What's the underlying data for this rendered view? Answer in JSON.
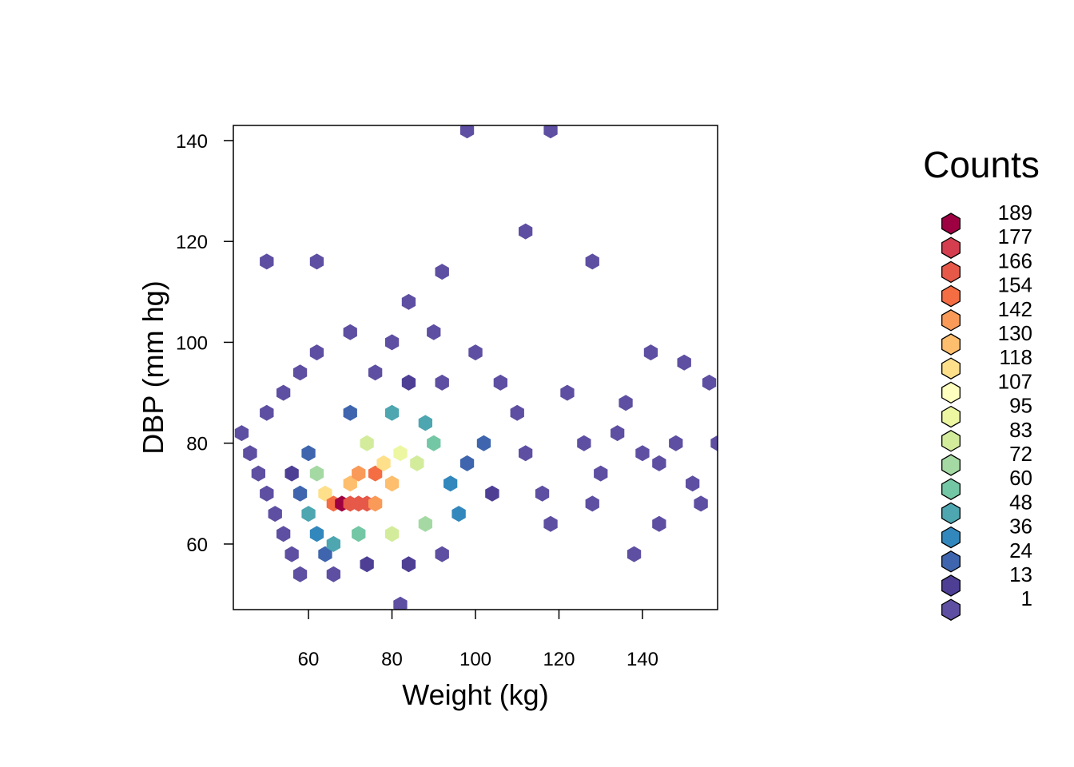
{
  "chart_data": {
    "type": "heatmap",
    "subtype": "hexbin",
    "xlabel": "Weight (kg)",
    "ylabel": "DBP (mm hg)",
    "xlim": [
      42,
      158
    ],
    "ylim": [
      47,
      143
    ],
    "xticks": [
      60,
      80,
      100,
      120,
      140
    ],
    "yticks": [
      60,
      80,
      100,
      120,
      140
    ],
    "xtick_labels": [
      "60",
      "80",
      "100",
      "120",
      "140"
    ],
    "ytick_labels": [
      "60",
      "80",
      "100",
      "120",
      "140"
    ],
    "grid": false,
    "legend": {
      "title": "Counts",
      "placement": "right",
      "labels": [
        "189",
        "177",
        "166",
        "154",
        "142",
        "130",
        "118",
        "107",
        "95",
        "83",
        "72",
        "60",
        "48",
        "36",
        "24",
        "13",
        "1"
      ],
      "colors": [
        "#9E0142",
        "#D53E4F",
        "#E65848",
        "#F46D43",
        "#FA9A58",
        "#FDBE6E",
        "#FEE08B",
        "#FFFFBF",
        "#EDF7A2",
        "#D3EC9C",
        "#A4D9A4",
        "#74C7A4",
        "#4DA6B0",
        "#3288BD",
        "#3E65AE",
        "#4E3F95",
        "#5E4FA2"
      ]
    },
    "bins": [
      {
        "x": 44,
        "y": 82,
        "count": 1
      },
      {
        "x": 46,
        "y": 78,
        "count": 3
      },
      {
        "x": 48,
        "y": 74,
        "count": 5
      },
      {
        "x": 50,
        "y": 70,
        "count": 6
      },
      {
        "x": 52,
        "y": 66,
        "count": 8
      },
      {
        "x": 54,
        "y": 62,
        "count": 6
      },
      {
        "x": 56,
        "y": 58,
        "count": 5
      },
      {
        "x": 58,
        "y": 54,
        "count": 3
      },
      {
        "x": 50,
        "y": 86,
        "count": 2
      },
      {
        "x": 54,
        "y": 90,
        "count": 3
      },
      {
        "x": 58,
        "y": 94,
        "count": 2
      },
      {
        "x": 62,
        "y": 98,
        "count": 2
      },
      {
        "x": 56,
        "y": 74,
        "count": 18
      },
      {
        "x": 58,
        "y": 70,
        "count": 34
      },
      {
        "x": 60,
        "y": 66,
        "count": 52
      },
      {
        "x": 62,
        "y": 62,
        "count": 44
      },
      {
        "x": 64,
        "y": 58,
        "count": 26
      },
      {
        "x": 66,
        "y": 54,
        "count": 12
      },
      {
        "x": 60,
        "y": 78,
        "count": 28
      },
      {
        "x": 62,
        "y": 74,
        "count": 74
      },
      {
        "x": 64,
        "y": 70,
        "count": 118
      },
      {
        "x": 66,
        "y": 68,
        "count": 160
      },
      {
        "x": 68,
        "y": 68,
        "count": 189
      },
      {
        "x": 70,
        "y": 68,
        "count": 176
      },
      {
        "x": 72,
        "y": 68,
        "count": 172
      },
      {
        "x": 74,
        "y": 68,
        "count": 170
      },
      {
        "x": 76,
        "y": 68,
        "count": 150
      },
      {
        "x": 70,
        "y": 72,
        "count": 140
      },
      {
        "x": 72,
        "y": 74,
        "count": 148
      },
      {
        "x": 76,
        "y": 74,
        "count": 160
      },
      {
        "x": 80,
        "y": 72,
        "count": 136
      },
      {
        "x": 78,
        "y": 76,
        "count": 118
      },
      {
        "x": 82,
        "y": 78,
        "count": 104
      },
      {
        "x": 74,
        "y": 80,
        "count": 94
      },
      {
        "x": 86,
        "y": 76,
        "count": 92
      },
      {
        "x": 90,
        "y": 80,
        "count": 70
      },
      {
        "x": 88,
        "y": 84,
        "count": 58
      },
      {
        "x": 80,
        "y": 86,
        "count": 48
      },
      {
        "x": 70,
        "y": 86,
        "count": 34
      },
      {
        "x": 94,
        "y": 72,
        "count": 46
      },
      {
        "x": 98,
        "y": 76,
        "count": 30
      },
      {
        "x": 102,
        "y": 80,
        "count": 24
      },
      {
        "x": 104,
        "y": 70,
        "count": 22
      },
      {
        "x": 96,
        "y": 66,
        "count": 40
      },
      {
        "x": 88,
        "y": 64,
        "count": 72
      },
      {
        "x": 80,
        "y": 62,
        "count": 84
      },
      {
        "x": 72,
        "y": 62,
        "count": 66
      },
      {
        "x": 66,
        "y": 60,
        "count": 50
      },
      {
        "x": 74,
        "y": 56,
        "count": 22
      },
      {
        "x": 84,
        "y": 56,
        "count": 14
      },
      {
        "x": 92,
        "y": 58,
        "count": 10
      },
      {
        "x": 84,
        "y": 92,
        "count": 14
      },
      {
        "x": 76,
        "y": 94,
        "count": 12
      },
      {
        "x": 92,
        "y": 92,
        "count": 8
      },
      {
        "x": 80,
        "y": 100,
        "count": 6
      },
      {
        "x": 90,
        "y": 102,
        "count": 4
      },
      {
        "x": 70,
        "y": 102,
        "count": 3
      },
      {
        "x": 84,
        "y": 108,
        "count": 1
      },
      {
        "x": 100,
        "y": 98,
        "count": 3
      },
      {
        "x": 106,
        "y": 92,
        "count": 4
      },
      {
        "x": 110,
        "y": 86,
        "count": 4
      },
      {
        "x": 112,
        "y": 78,
        "count": 5
      },
      {
        "x": 116,
        "y": 70,
        "count": 4
      },
      {
        "x": 118,
        "y": 64,
        "count": 3
      },
      {
        "x": 122,
        "y": 90,
        "count": 2
      },
      {
        "x": 126,
        "y": 80,
        "count": 1
      },
      {
        "x": 128,
        "y": 68,
        "count": 1
      },
      {
        "x": 130,
        "y": 74,
        "count": 1
      },
      {
        "x": 134,
        "y": 82,
        "count": 1
      },
      {
        "x": 136,
        "y": 88,
        "count": 1
      },
      {
        "x": 140,
        "y": 78,
        "count": 1
      },
      {
        "x": 144,
        "y": 76,
        "count": 1
      },
      {
        "x": 148,
        "y": 80,
        "count": 1
      },
      {
        "x": 152,
        "y": 72,
        "count": 1
      },
      {
        "x": 154,
        "y": 68,
        "count": 1
      },
      {
        "x": 156,
        "y": 92,
        "count": 1
      },
      {
        "x": 158,
        "y": 80,
        "count": 1
      },
      {
        "x": 142,
        "y": 98,
        "count": 1
      },
      {
        "x": 150,
        "y": 96,
        "count": 1
      },
      {
        "x": 98,
        "y": 142,
        "count": 1
      },
      {
        "x": 118,
        "y": 142,
        "count": 1
      },
      {
        "x": 112,
        "y": 122,
        "count": 1
      },
      {
        "x": 128,
        "y": 116,
        "count": 1
      },
      {
        "x": 50,
        "y": 116,
        "count": 1
      },
      {
        "x": 62,
        "y": 116,
        "count": 1
      },
      {
        "x": 92,
        "y": 114,
        "count": 1
      },
      {
        "x": 138,
        "y": 58,
        "count": 1
      },
      {
        "x": 144,
        "y": 64,
        "count": 1
      },
      {
        "x": 82,
        "y": 48,
        "count": 1
      }
    ]
  }
}
